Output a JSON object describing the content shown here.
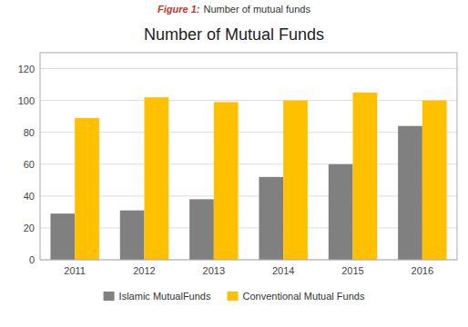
{
  "chart_data": {
    "type": "bar",
    "title": "Number of Mutual Funds",
    "annotations": [
      "Figure 1:",
      "Number of mutual funds"
    ],
    "categories": [
      "2011",
      "2012",
      "2013",
      "2014",
      "2015",
      "2016"
    ],
    "series": [
      {
        "name": "Islamic MutualFunds",
        "color": "#808080",
        "values": [
          29,
          31,
          38,
          52,
          60,
          84
        ]
      },
      {
        "name": "Conventional Mutual Funds",
        "color": "#FFC000",
        "values": [
          89,
          102,
          99,
          100,
          105,
          100
        ]
      }
    ],
    "ylim": [
      0,
      130
    ],
    "yticks": [
      0,
      20,
      40,
      60,
      80,
      100,
      120
    ],
    "grid": true,
    "legend": "bottom"
  }
}
